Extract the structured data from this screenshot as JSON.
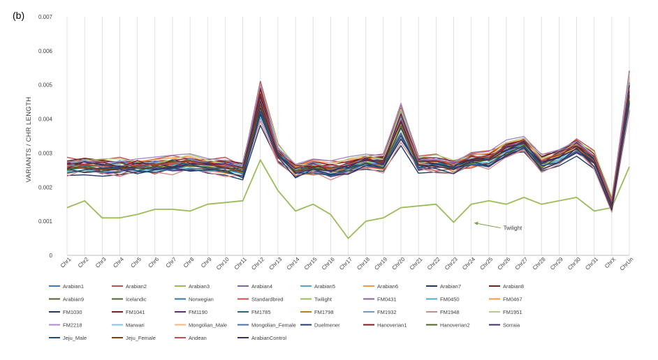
{
  "chart_data": {
    "type": "line",
    "panel_label": "(b)",
    "title": "",
    "xlabel": "",
    "ylabel": "VARIANTS / CHR LENGTH",
    "ylim": [
      0,
      0.007
    ],
    "yticks": [
      "0",
      "0.001",
      "0.002",
      "0.003",
      "0.004",
      "0.005",
      "0.006",
      "0.007"
    ],
    "grid": "vertical",
    "legend_position": "bottom",
    "categories": [
      "Chr1",
      "Chr2",
      "Chr3",
      "Chr4",
      "Chr5",
      "Chr6",
      "Chr7",
      "Chr8",
      "Chr9",
      "Chr10",
      "Chr11",
      "Chr12",
      "Chr13",
      "Chr14",
      "Chr15",
      "Chr16",
      "Chr17",
      "Chr18",
      "Chr19",
      "Chr20",
      "Chr21",
      "Chr22",
      "Chr23",
      "Chr24",
      "Chr25",
      "Chr26",
      "Chr27",
      "Chr28",
      "Chr29",
      "Chr30",
      "Chr31",
      "ChrX",
      "ChrUn"
    ],
    "annotation": {
      "text": "Twilight",
      "series": "Twilight",
      "category_index": 23,
      "value": 0.00097
    },
    "baseline_profile": [
      0.0026,
      0.00265,
      0.0026,
      0.0026,
      0.00262,
      0.00262,
      0.00265,
      0.0027,
      0.0026,
      0.0026,
      0.0025,
      0.0045,
      0.003,
      0.0025,
      0.0026,
      0.0025,
      0.0026,
      0.0027,
      0.0027,
      0.0039,
      0.0027,
      0.0027,
      0.0026,
      0.0028,
      0.0028,
      0.0031,
      0.0032,
      0.0027,
      0.0029,
      0.0032,
      0.0028,
      0.0015,
      0.0048
    ],
    "offsets": [
      5e-05,
      0.0002,
      1e-05,
      -8e-05,
      6e-05,
      -0.00011,
      -0.0002,
      0.00013,
      0.0001,
      -0.0001,
      4e-05,
      -0.00015,
      0.0,
      8e-05,
      -3e-05,
      0.00012,
      -7e-05,
      0.00011,
      -0.00012,
      5e-05,
      -4e-05,
      9e-05,
      -0.0002,
      0.00016,
      0.0002,
      -0.00016,
      0.0,
      -9e-05,
      -0.00014,
      7e-05,
      -6e-05,
      3e-05,
      -0.0001
    ],
    "series": [
      {
        "name": "Arabian1",
        "color": "#4472c4"
      },
      {
        "name": "Arabian2",
        "color": "#c0504d"
      },
      {
        "name": "Arabian3",
        "color": "#9bbb59"
      },
      {
        "name": "Arabian4",
        "color": "#8064a2"
      },
      {
        "name": "Arabian5",
        "color": "#4bacc6"
      },
      {
        "name": "Arabian6",
        "color": "#f79646"
      },
      {
        "name": "Arabian7",
        "color": "#1f3864"
      },
      {
        "name": "Arabian8",
        "color": "#7b1f1f"
      },
      {
        "name": "Arabian9",
        "color": "#4f6228"
      },
      {
        "name": "Icelandic",
        "color": "#4f6228"
      },
      {
        "name": "Norwegian",
        "color": "#2e75b6"
      },
      {
        "name": "Standardbred",
        "color": "#c0504d"
      },
      {
        "name": "Twilight",
        "color": "#9bbb59",
        "values": [
          0.0014,
          0.0016,
          0.0011,
          0.0011,
          0.0012,
          0.00135,
          0.00135,
          0.0013,
          0.0015,
          0.00155,
          0.0016,
          0.0028,
          0.0019,
          0.0013,
          0.0015,
          0.0012,
          0.0005,
          0.001,
          0.0011,
          0.0014,
          0.00145,
          0.0015,
          0.00097,
          0.0015,
          0.0016,
          0.0015,
          0.0017,
          0.0015,
          0.0016,
          0.0017,
          0.0013,
          0.0014,
          0.0026
        ]
      },
      {
        "name": "FM0431",
        "color": "#8064a2"
      },
      {
        "name": "FM0450",
        "color": "#4bacc6"
      },
      {
        "name": "FM0467",
        "color": "#f79646"
      },
      {
        "name": "FM1030",
        "color": "#1f3864"
      },
      {
        "name": "FM1041",
        "color": "#7b1f1f"
      },
      {
        "name": "FM1190",
        "color": "#5f2c82"
      },
      {
        "name": "FM1785",
        "color": "#1d6f7b"
      },
      {
        "name": "FM1798",
        "color": "#c07a1d"
      },
      {
        "name": "FM1932",
        "color": "#6b9bd1"
      },
      {
        "name": "FM1948",
        "color": "#d18a8a"
      },
      {
        "name": "FM1951",
        "color": "#b5cf82"
      },
      {
        "name": "FM2218",
        "color": "#a48cc6"
      },
      {
        "name": "Marwari",
        "color": "#7cc8dc"
      },
      {
        "name": "Mongolian_Male",
        "color": "#f8b683"
      },
      {
        "name": "Mongolian_Female",
        "color": "#4a6fa5"
      },
      {
        "name": "Duelmener",
        "color": "#1f3864"
      },
      {
        "name": "Hanoverian1",
        "color": "#7b1f1f"
      },
      {
        "name": "Hanoverian2",
        "color": "#4f6228"
      },
      {
        "name": "Sorraia",
        "color": "#3f2f5f"
      },
      {
        "name": "Jeju_Male",
        "color": "#1f4e79"
      },
      {
        "name": "Jeju_Female",
        "color": "#843c0c"
      },
      {
        "name": "Andean",
        "color": "#c0504d"
      },
      {
        "name": "ArabianControl",
        "color": "#3f2f5f"
      }
    ]
  }
}
